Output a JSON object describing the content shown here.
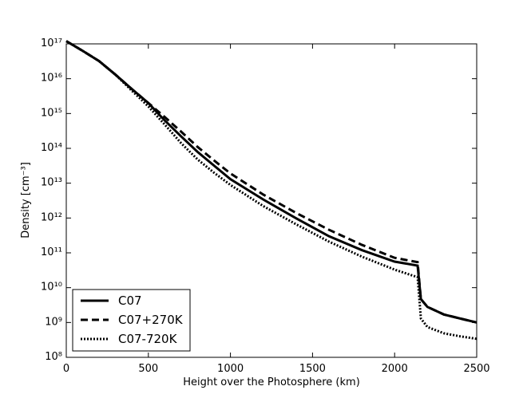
{
  "chart_data": {
    "type": "line",
    "xlabel": "Height over the Photosphere (km)",
    "ylabel": "Density [cm⁻³]",
    "x": [
      0,
      100,
      200,
      300,
      400,
      500,
      600,
      700,
      800,
      900,
      1000,
      1200,
      1400,
      1600,
      1800,
      2000,
      2140,
      2160,
      2200,
      2300,
      2400,
      2500
    ],
    "series": [
      {
        "name": "C07",
        "color": "#000000",
        "linestyle": "solid",
        "values": [
          1.2e+17,
          6.3e+16,
          3.2e+16,
          1.3e+16,
          5000000000000000.0,
          2000000000000000.0,
          630000000000000.0,
          220000000000000.0,
          79000000000000.0,
          32000000000000.0,
          13000000000000.0,
          3400000000000.0,
          980000000000.0,
          300000000000.0,
          120000000000.0,
          56000000000.0,
          43000000000.0,
          4700000000.0,
          2800000000.0,
          1700000000.0,
          1300000000.0,
          1000000000.0
        ]
      },
      {
        "name": "C07+270K",
        "color": "#000000",
        "linestyle": "dashed",
        "values": [
          1.2e+17,
          6.3e+16,
          3.2e+16,
          1.3e+16,
          5000000000000000.0,
          2000000000000000.0,
          790000000000000.0,
          300000000000000.0,
          110000000000000.0,
          45000000000000.0,
          19000000000000.0,
          4700000000000.0,
          1400000000000.0,
          460000000000.0,
          170000000000.0,
          72000000000.0,
          54000000000.0,
          4700000000.0,
          2800000000.0,
          1700000000.0,
          1300000000.0,
          1000000000.0
        ]
      },
      {
        "name": "C07-720K",
        "color": "#000000",
        "linestyle": "dotted",
        "values": [
          1.2e+17,
          6.3e+16,
          3.2e+16,
          1.3e+16,
          4500000000000000.0,
          1600000000000000.0,
          480000000000000.0,
          140000000000000.0,
          48000000000000.0,
          20000000000000.0,
          8900000000000.0,
          2200000000000.0,
          660000000000.0,
          210000000000.0,
          78000000000.0,
          33000000000.0,
          20000000000.0,
          1300000000.0,
          740000000.0,
          490000000.0,
          400000000.0,
          340000000.0
        ]
      }
    ],
    "xlim": [
      0,
      2500
    ],
    "xticks": [
      0,
      500,
      1000,
      1500,
      2000,
      2500
    ],
    "ylim": [
      100000000.0,
      1e+17
    ],
    "yscale": "log",
    "yticks": [
      {
        "value": 100000000.0,
        "label": "10⁸"
      },
      {
        "value": 1000000000.0,
        "label": "10⁹"
      },
      {
        "value": 10000000000.0,
        "label": "10¹⁰"
      },
      {
        "value": 100000000000.0,
        "label": "10¹¹"
      },
      {
        "value": 1000000000000.0,
        "label": "10¹²"
      },
      {
        "value": 10000000000000.0,
        "label": "10¹³"
      },
      {
        "value": 100000000000000.0,
        "label": "10¹⁴"
      },
      {
        "value": 1000000000000000.0,
        "label": "10¹⁵"
      },
      {
        "value": 1e+16,
        "label": "10¹⁶"
      },
      {
        "value": 1e+17,
        "label": "10¹⁷"
      }
    ],
    "legend": "lower left",
    "grid": false
  }
}
